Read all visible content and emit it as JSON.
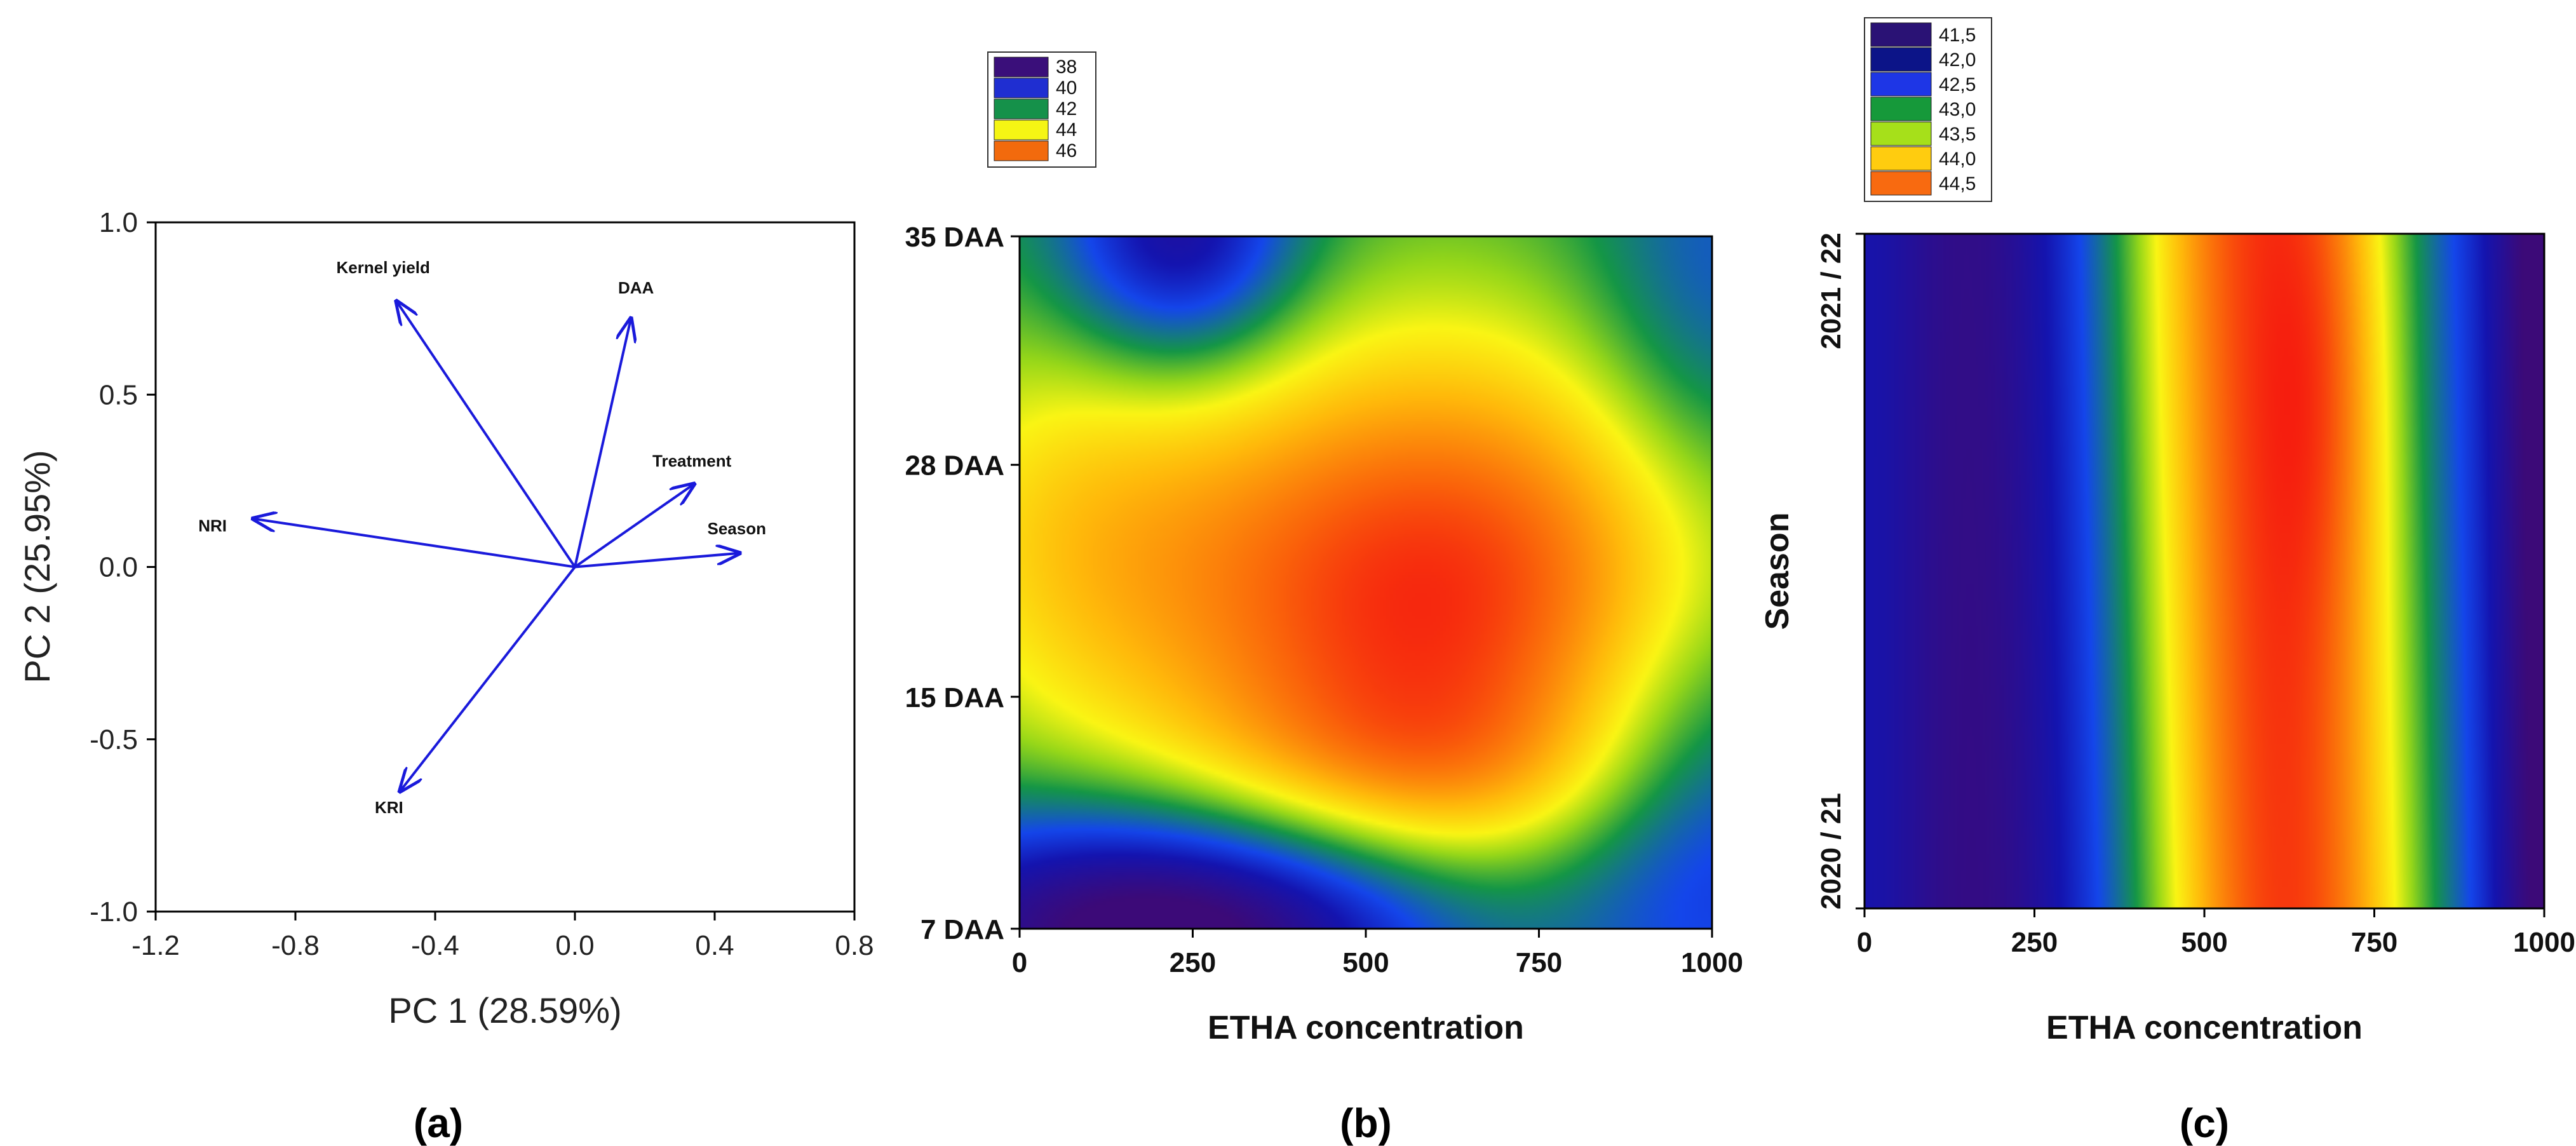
{
  "colors": {
    "vector": "#1a1adb",
    "axis": "#000000"
  },
  "chart_data": [
    {
      "panel": "(a)",
      "type": "scatter",
      "subtype": "pca-biplot",
      "xlabel": "PC 1 (28.59%)",
      "ylabel": "PC 2 (25.95%)",
      "xlim": [
        -1.2,
        0.8
      ],
      "ylim": [
        -1.0,
        1.0
      ],
      "xticks": [
        -1.2,
        -0.8,
        -0.4,
        0.0,
        0.4,
        0.8
      ],
      "xtick_labels": [
        "-1.2",
        "-0.8",
        "-0.4",
        "0.0",
        "0.4",
        "0.8"
      ],
      "yticks": [
        -1.0,
        -0.5,
        0.0,
        0.5,
        1.0
      ],
      "ytick_labels": [
        "-1.0",
        "-0.5",
        "0.0",
        "0.5",
        "1.0"
      ],
      "vectors": [
        {
          "name": "Kernel yield",
          "x": -0.51,
          "y": 0.77
        },
        {
          "name": "DAA",
          "x": 0.16,
          "y": 0.72
        },
        {
          "name": "Treatment",
          "x": 0.34,
          "y": 0.24
        },
        {
          "name": "Season",
          "x": 0.47,
          "y": 0.04
        },
        {
          "name": "NRI",
          "x": -0.92,
          "y": 0.14
        },
        {
          "name": "KRI",
          "x": -0.5,
          "y": -0.65
        }
      ]
    },
    {
      "panel": "(b)",
      "type": "heatmap",
      "xlabel": "ETHA concentration",
      "ylabel": "",
      "xlim": [
        0,
        1000
      ],
      "xticks": [
        0,
        250,
        500,
        750,
        1000
      ],
      "xtick_labels": [
        "0",
        "250",
        "500",
        "750",
        "1000"
      ],
      "y_categories": [
        "7 DAA",
        "15 DAA",
        "28 DAA",
        "35 DAA"
      ],
      "legend": {
        "position": "top-left",
        "entries": [
          {
            "label": "38",
            "color": "#3a0f7a"
          },
          {
            "label": "40",
            "color": "#1f2ed1"
          },
          {
            "label": "42",
            "color": "#15914a"
          },
          {
            "label": "44",
            "color": "#f5f514"
          },
          {
            "label": "46",
            "color": "#f26a0d"
          }
        ]
      },
      "value_range": [
        37,
        47
      ]
    },
    {
      "panel": "(c)",
      "type": "heatmap",
      "xlabel": "ETHA concentration",
      "ylabel": "Season",
      "xlim": [
        0,
        1000
      ],
      "xticks": [
        0,
        250,
        500,
        750,
        1000
      ],
      "xtick_labels": [
        "0",
        "250",
        "500",
        "750",
        "1000"
      ],
      "y_categories": [
        "2020 / 21",
        "2021 / 22"
      ],
      "legend": {
        "position": "top-left",
        "entries": [
          {
            "label": "41,5",
            "color": "#2a1275"
          },
          {
            "label": "42,0",
            "color": "#0c1488"
          },
          {
            "label": "42,5",
            "color": "#1e36e6"
          },
          {
            "label": "43,0",
            "color": "#16993a"
          },
          {
            "label": "43,5",
            "color": "#a6e01a"
          },
          {
            "label": "44,0",
            "color": "#ffcc0f"
          },
          {
            "label": "44,5",
            "color": "#f86a10"
          }
        ]
      },
      "value_range": [
        41.3,
        45.2
      ]
    }
  ]
}
